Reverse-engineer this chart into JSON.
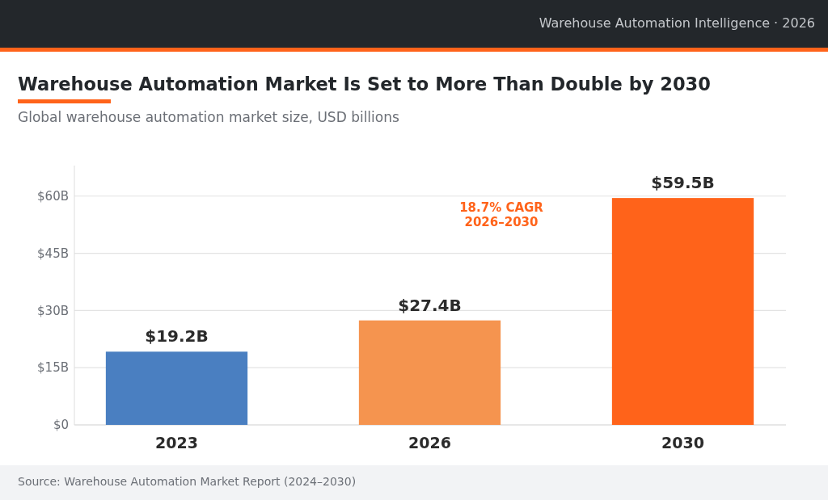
{
  "chart_data": {
    "type": "bar",
    "title": "Warehouse Automation Market Is Set to More Than Double by 2030",
    "subtitle": "Global warehouse automation market size, USD billions",
    "categories": [
      "2023",
      "2026",
      "2030"
    ],
    "values": [
      19.2,
      27.4,
      59.5
    ],
    "colors": [
      "#4a7fc1",
      "#f5944f",
      "#ff631a"
    ],
    "value_labels": [
      "$19.2B",
      "$27.4B",
      "$59.5B"
    ],
    "ylim": [
      0,
      68
    ],
    "yticks": [
      {
        "value": 0,
        "label": "$0"
      },
      {
        "value": 15,
        "label": "$15B"
      },
      {
        "value": 30,
        "label": "$30B"
      },
      {
        "value": 45,
        "label": "$45B"
      },
      {
        "value": 60,
        "label": "$60B"
      }
    ],
    "grid": "y",
    "annotations": [
      "Warehouse Automation Intelligence  ·  2026",
      "18.7% CAGR\n2026–2030",
      "Source: Warehouse Automation Market Report (2024–2030)"
    ]
  }
}
